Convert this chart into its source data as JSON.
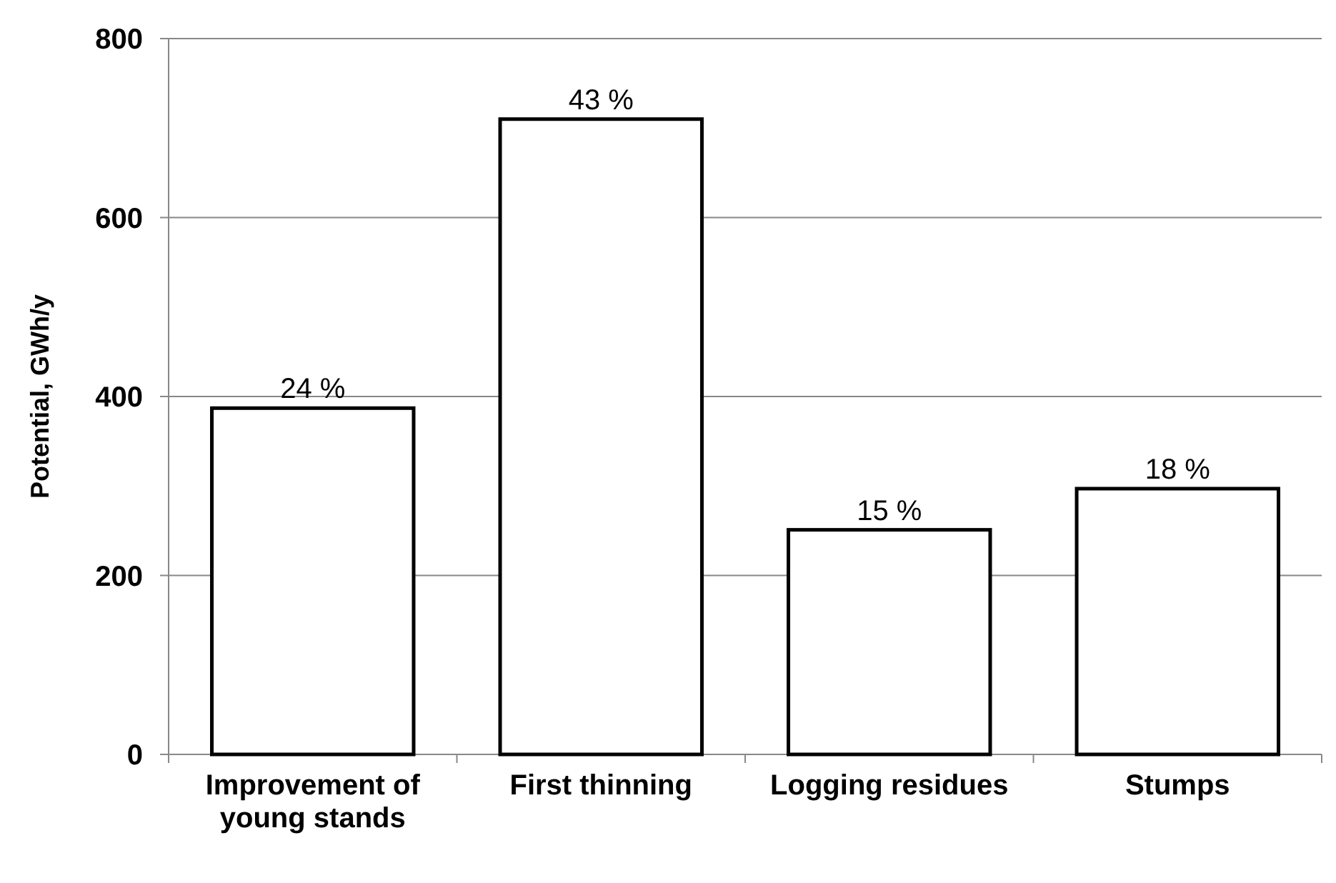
{
  "chart_data": {
    "type": "bar",
    "ylabel": "Potential, GWh/y",
    "categories": [
      "Improvement of young stands",
      "First thinning",
      "Logging residues",
      "Stumps"
    ],
    "values": [
      387,
      710,
      251,
      297
    ],
    "color": "#ffffff",
    "annotations": [
      {
        "text": "24 %",
        "x": "Improvement of young stands",
        "y": 387
      },
      {
        "text": "43 %",
        "x": "First thinning",
        "y": 710
      },
      {
        "text": "15 %",
        "x": "Logging residues",
        "y": 251
      },
      {
        "text": "18 %",
        "x": "Stumps",
        "y": 297
      }
    ],
    "ylim": [
      0,
      800
    ],
    "yticks": [
      0,
      200,
      400,
      600,
      800
    ],
    "grid": "y"
  }
}
